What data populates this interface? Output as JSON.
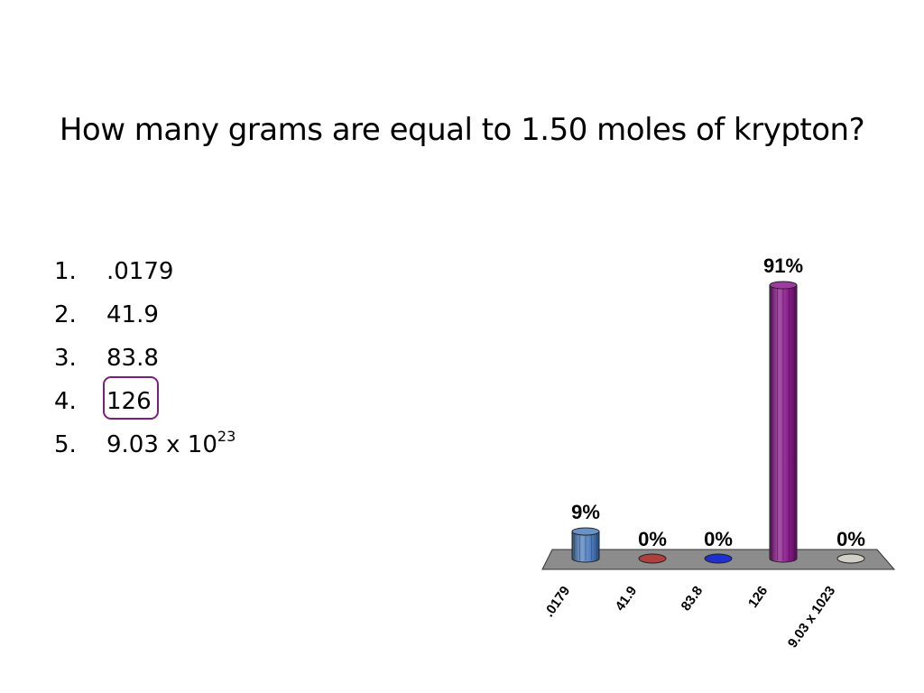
{
  "slide": {
    "title": "How many grams are equal to 1.50 moles of krypton?"
  },
  "choices": [
    {
      "num": "1.",
      "text": ".0179",
      "sup": ""
    },
    {
      "num": "2.",
      "text": "41.9",
      "sup": ""
    },
    {
      "num": "3.",
      "text": "83.8",
      "sup": ""
    },
    {
      "num": "4.",
      "text": "126",
      "sup": ""
    },
    {
      "num": "5.",
      "text": "9.03 x 10",
      "sup": "23"
    }
  ],
  "correct_choice": 4,
  "chart_data": {
    "type": "bar",
    "title": "",
    "xlabel": "",
    "ylabel": "",
    "categories": [
      ".0179",
      "41.9",
      "83.8",
      "126",
      "9.03 x 1023"
    ],
    "values": [
      9,
      0,
      0,
      91,
      0
    ],
    "value_labels": [
      "9%",
      "0%",
      "0%",
      "91%",
      "0%"
    ],
    "unit": "%",
    "ylim": [
      0,
      100
    ],
    "grid": false,
    "legend": "none",
    "colors": [
      "#4f7fc0",
      "#b04040",
      "#1f2fd0",
      "#8a1a8c",
      "#d0d0c8"
    ],
    "floor_color": "#8c8c8c"
  }
}
